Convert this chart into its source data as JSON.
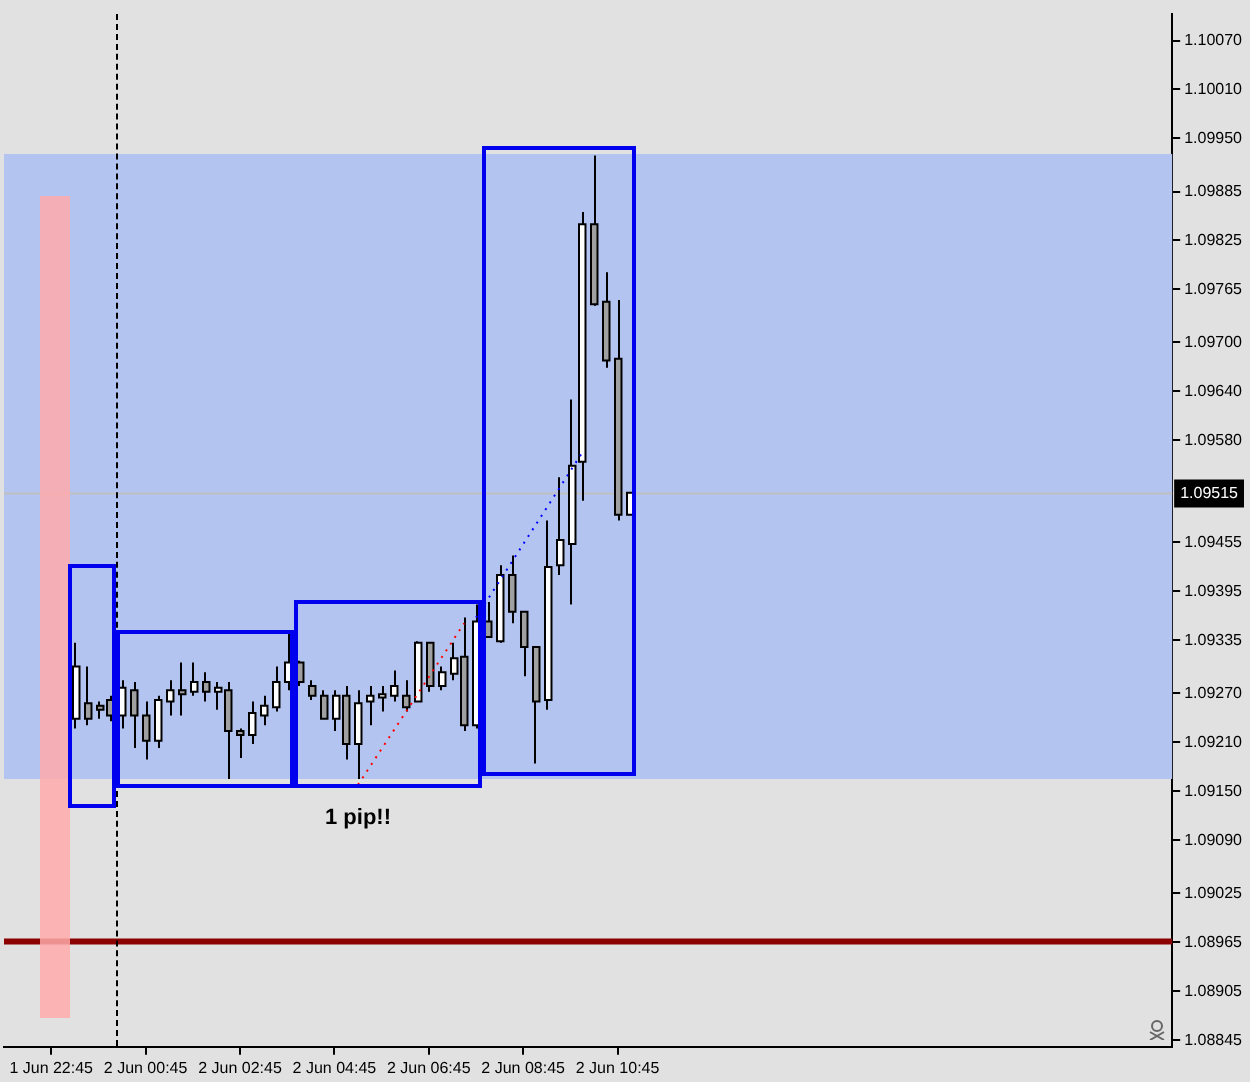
{
  "chart_data": {
    "type": "candlestick",
    "categories": [
      null,
      null,
      null,
      null,
      "1 Jun 22:45",
      null,
      null,
      null,
      null,
      null,
      null,
      null,
      "2 Jun 00:45",
      null,
      null,
      null,
      null,
      null,
      null,
      null,
      "2 Jun 02:45",
      null,
      null,
      null,
      null,
      null,
      null,
      null,
      "2 Jun 04:45",
      null,
      null,
      null,
      null,
      null,
      null,
      null,
      "2 Jun 06:45",
      null,
      null,
      null,
      null,
      null,
      null,
      null,
      "2 Jun 08:45",
      null,
      null,
      null,
      null,
      null,
      null,
      null,
      "2 Jun 10:45",
      null,
      null,
      null,
      null,
      null,
      null,
      null,
      null,
      null,
      null,
      null,
      null,
      null,
      null,
      null,
      null,
      null,
      null,
      null,
      null,
      null,
      null,
      null,
      null,
      null,
      null,
      null,
      null,
      null,
      null,
      null,
      null,
      null,
      null,
      null,
      null,
      null,
      null,
      null,
      null,
      null,
      null,
      null,
      null,
      null,
      null,
      null
    ],
    "ohlc": [
      null,
      null,
      null,
      null,
      null,
      null,
      [
        1.09239,
        1.09332,
        1.09227,
        1.09303
      ],
      [
        1.09258,
        1.09303,
        1.09231,
        1.09239
      ],
      [
        1.09255,
        1.0926,
        1.09239,
        1.0925
      ],
      [
        1.09262,
        1.09267,
        1.09236,
        1.09243
      ],
      [
        1.09243,
        1.09286,
        1.09227,
        1.09277
      ],
      [
        1.09274,
        1.09284,
        1.09203,
        1.09243
      ],
      [
        1.09243,
        1.0926,
        1.09189,
        1.09212
      ],
      [
        1.09212,
        1.09267,
        1.09203,
        1.09262
      ],
      [
        1.0926,
        1.09286,
        1.09243,
        1.09274
      ],
      [
        1.09274,
        1.09308,
        1.09243,
        1.09269
      ],
      [
        1.09272,
        1.09308,
        1.09267,
        1.09284
      ],
      [
        1.09284,
        1.09296,
        1.0926,
        1.09272
      ],
      [
        1.09272,
        1.09284,
        1.0925,
        1.09277
      ],
      [
        1.09274,
        1.09284,
        1.09165,
        1.09224
      ],
      [
        1.09224,
        1.09227,
        1.09191,
        1.09219
      ],
      [
        1.09219,
        1.0926,
        1.09208,
        1.09246
      ],
      [
        1.09243,
        1.09267,
        1.09231,
        1.09255
      ],
      [
        1.09253,
        1.09303,
        1.09248,
        1.09284
      ],
      [
        1.09284,
        1.09346,
        1.09274,
        1.09308
      ],
      [
        1.09308,
        1.0931,
        1.09279,
        1.09284
      ],
      [
        1.09279,
        1.09286,
        1.09262,
        1.09267
      ],
      [
        1.09267,
        1.09274,
        1.09239,
        1.09239
      ],
      [
        1.09239,
        1.09274,
        1.09224,
        1.09267
      ],
      [
        1.09267,
        1.09279,
        1.09189,
        1.09208
      ],
      [
        1.09208,
        1.09274,
        1.09165,
        1.09258
      ],
      [
        1.0926,
        1.09279,
        1.09231,
        1.09267
      ],
      [
        1.09265,
        1.09279,
        1.09248,
        1.09269
      ],
      [
        1.09267,
        1.09298,
        1.0926,
        1.09279
      ],
      [
        1.09267,
        1.09286,
        1.09248,
        1.09253
      ],
      [
        1.0926,
        1.09334,
        1.0926,
        1.09332
      ],
      [
        1.09332,
        1.09332,
        1.09272,
        1.09279
      ],
      [
        1.09279,
        1.09303,
        1.09274,
        1.09296
      ],
      [
        1.09294,
        1.09332,
        1.09286,
        1.09313
      ],
      [
        1.09315,
        1.09363,
        1.09224,
        1.09231
      ],
      [
        1.09231,
        1.09379,
        1.09227,
        1.09358
      ],
      [
        1.09358,
        1.09382,
        1.09339,
        1.09339
      ],
      [
        1.09334,
        1.09427,
        1.09332,
        1.09415
      ],
      [
        1.09415,
        1.09439,
        1.09356,
        1.0937
      ],
      [
        1.0937,
        1.0937,
        1.09291,
        1.09327
      ],
      [
        1.09327,
        1.09327,
        1.09184,
        1.0926
      ],
      [
        1.09262,
        1.09482,
        1.0925,
        1.09425
      ],
      [
        1.09427,
        1.09535,
        1.09415,
        1.09458
      ],
      [
        1.09453,
        1.0963,
        1.09379,
        1.09549
      ],
      [
        1.09554,
        1.0986,
        1.09506,
        1.09845
      ],
      [
        1.09845,
        1.09929,
        1.09745,
        1.09747
      ],
      [
        1.0975,
        1.09786,
        1.09669,
        1.09678
      ],
      [
        1.0968,
        1.09752,
        1.09482,
        1.09489
      ],
      [
        1.09489,
        1.09516,
        1.09489,
        1.09516
      ],
      null,
      null,
      null,
      null,
      null,
      null,
      null,
      null,
      null,
      null,
      null,
      null,
      null,
      null,
      null,
      null,
      null,
      null,
      null,
      null,
      null,
      null,
      null,
      null,
      null,
      null,
      null,
      null,
      null,
      null,
      null,
      null,
      null,
      null,
      null,
      null,
      null,
      null,
      null,
      null,
      null,
      null,
      null,
      null,
      null,
      null
    ],
    "series": [
      {
        "type": "line",
        "color": "#ff0000",
        "line_style": "dotted",
        "values": [
          null,
          null,
          null,
          null,
          null,
          null,
          null,
          null,
          null,
          null,
          null,
          null,
          null,
          null,
          null,
          null,
          null,
          null,
          null,
          null,
          null,
          null,
          null,
          null,
          null,
          null,
          null,
          null,
          null,
          null,
          1.09158,
          null,
          null,
          null,
          null,
          null,
          null,
          null,
          null,
          1.09356,
          null,
          null,
          null,
          null,
          null,
          null,
          null,
          null,
          null,
          null,
          null,
          null,
          null,
          null,
          null,
          null,
          null,
          null,
          null,
          null,
          null,
          null,
          null,
          null,
          null,
          null,
          null,
          null,
          null,
          null,
          null,
          null,
          null,
          null,
          null,
          null,
          null,
          null,
          null,
          null,
          null,
          null,
          null,
          null,
          null,
          null,
          null,
          null,
          null,
          null,
          null,
          null,
          null,
          null,
          null,
          null,
          null,
          null,
          null,
          null
        ]
      },
      {
        "type": "line",
        "color": "#0000ff",
        "line_style": "dotted",
        "values": [
          null,
          null,
          null,
          null,
          null,
          null,
          null,
          null,
          null,
          null,
          null,
          null,
          null,
          null,
          null,
          null,
          null,
          null,
          null,
          null,
          null,
          null,
          null,
          null,
          null,
          null,
          null,
          null,
          null,
          null,
          null,
          null,
          null,
          null,
          null,
          null,
          null,
          null,
          null,
          null,
          1.09363,
          null,
          null,
          null,
          null,
          null,
          null,
          null,
          null,
          1.09565,
          null,
          null,
          null,
          null,
          null,
          null,
          null,
          null,
          null,
          null,
          null,
          null,
          null,
          null,
          null,
          null,
          null,
          null,
          null,
          null,
          null,
          null,
          null,
          null,
          null,
          null,
          null,
          null,
          null,
          null,
          null,
          null,
          null,
          null,
          null,
          null,
          null,
          null,
          null,
          null,
          null,
          null,
          null,
          null,
          null,
          null,
          null,
          null,
          null,
          null
        ]
      }
    ],
    "ylim": [
      1.08837,
      1.10103
    ],
    "yticks": [
      {
        "value": 1.1007,
        "label": "1.10070"
      },
      {
        "value": 1.1001,
        "label": "1.10010"
      },
      {
        "value": 1.0995,
        "label": "1.09950"
      },
      1.09885,
      1.09825,
      1.09765,
      {
        "value": 1.097,
        "label": "1.09700"
      },
      {
        "value": 1.0964,
        "label": "1.09640"
      },
      {
        "value": 1.0958,
        "label": "1.09580"
      },
      1.09455,
      1.09395,
      1.09335,
      {
        "value": 1.0927,
        "label": "1.09270"
      },
      {
        "value": 1.0921,
        "label": "1.09210"
      },
      {
        "value": 1.0915,
        "label": "1.09150"
      },
      {
        "value": 1.0909,
        "label": "1.09090"
      },
      1.09025,
      1.08965,
      1.08905,
      1.08845
    ],
    "bands": [
      {
        "axis": "y",
        "from": 1.09165,
        "to": 1.09931,
        "color": "#b4c4f0"
      }
    ],
    "ref_lines": [
      {
        "axis": "y",
        "value": 1.09515,
        "label": "1.09515",
        "color": "#c0c0c0"
      },
      {
        "axis": "y",
        "value": 1.08966,
        "color": "#8b0000"
      }
    ],
    "annotations": [
      "1 pip!!"
    ],
    "grid": false,
    "legend": false
  }
}
